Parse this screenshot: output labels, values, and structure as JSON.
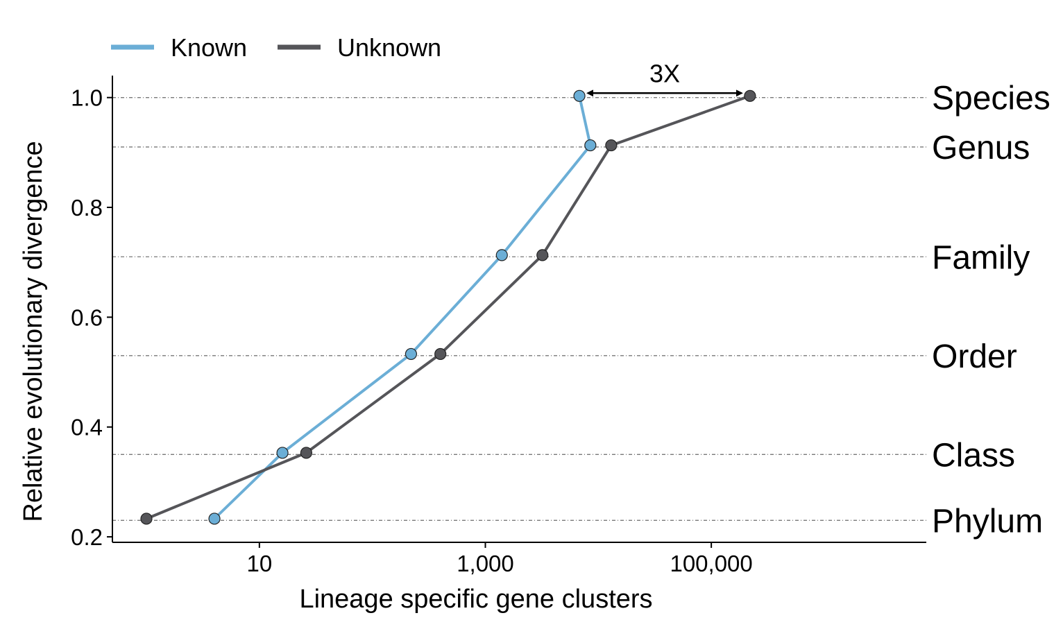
{
  "chart_data": {
    "type": "line",
    "xlabel": "Lineage specific gene clusters",
    "ylabel": "Relative evolutionary divergence",
    "x_scale": "log10",
    "xlim": [
      0.5,
      8000000
    ],
    "ylim": [
      0.19,
      1.04
    ],
    "x_ticks": [
      {
        "value": 10,
        "label": "10"
      },
      {
        "value": 1000,
        "label": "1,000"
      },
      {
        "value": 100000,
        "label": "100,000"
      }
    ],
    "y_ticks": [
      {
        "value": 0.2,
        "label": "0.2"
      },
      {
        "value": 0.4,
        "label": "0.4"
      },
      {
        "value": 0.6,
        "label": "0.6"
      },
      {
        "value": 0.8,
        "label": "0.8"
      },
      {
        "value": 1.0,
        "label": "1.0"
      }
    ],
    "grid": "horizontal dot-dash reference lines at each taxonomic rank",
    "legend": {
      "placement": "top-left"
    },
    "series": [
      {
        "name": "Known",
        "color": "#6baed6",
        "x": [
          4,
          16,
          220,
          1400,
          8500,
          6800
        ],
        "y": [
          0.233,
          0.353,
          0.533,
          0.713,
          0.913,
          1.003
        ]
      },
      {
        "name": "Unknown",
        "color": "#555559",
        "x": [
          1,
          26,
          400,
          3200,
          13000,
          220000
        ],
        "y": [
          0.233,
          0.353,
          0.533,
          0.713,
          0.913,
          1.003
        ]
      }
    ],
    "ranks": [
      {
        "label": "Species",
        "value": 1.0
      },
      {
        "label": "Genus",
        "value": 0.91
      },
      {
        "label": "Family",
        "value": 0.71
      },
      {
        "label": "Order",
        "value": 0.53
      },
      {
        "label": "Class",
        "value": 0.35
      },
      {
        "label": "Phylum",
        "value": 0.23
      }
    ],
    "annotation": {
      "label": "3X",
      "y": 1.003
    }
  }
}
